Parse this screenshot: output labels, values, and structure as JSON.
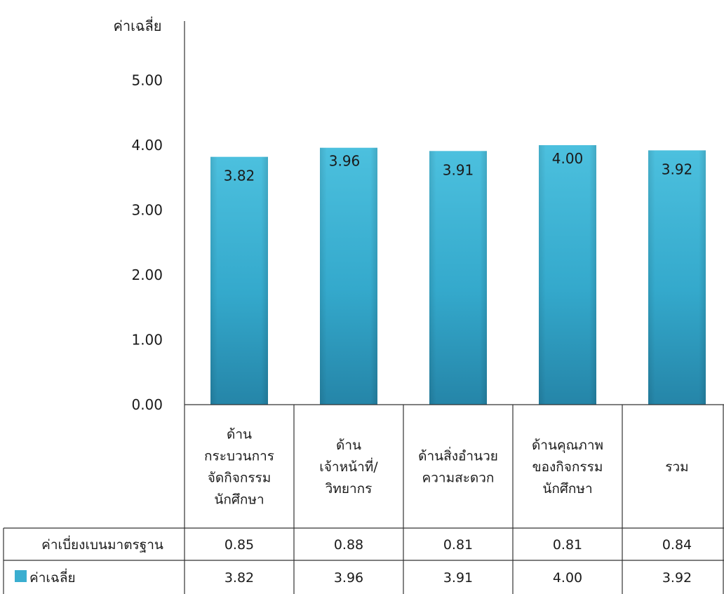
{
  "chart_data": {
    "type": "bar",
    "ylabel": "ค่าเฉลี่ย",
    "ylim": [
      0,
      5
    ],
    "yticks": [
      "0.00",
      "1.00",
      "2.00",
      "3.00",
      "4.00",
      "5.00"
    ],
    "categories": [
      [
        "ด้าน",
        "กระบวนการ",
        "จัดกิจกรรม",
        "นักศึกษา"
      ],
      [
        "ด้าน",
        "เจ้าหน้าที่/",
        "วิทยากร"
      ],
      [
        "ด้านสิ่งอำนวย",
        "ความสะดวก"
      ],
      [
        "ด้านคุณภาพ",
        "ของกิจกรรม",
        "นักศึกษา"
      ],
      [
        "รวม"
      ]
    ],
    "series": [
      {
        "name": "ค่าเฉลี่ย",
        "values": [
          3.82,
          3.96,
          3.91,
          4.0,
          3.92
        ],
        "labels": [
          "3.82",
          "3.96",
          "3.91",
          "4.00",
          "3.92"
        ]
      }
    ],
    "table_rows": [
      {
        "name": "ค่าเบี่ยงเบนมาตรฐาน",
        "values": [
          "0.85",
          "0.88",
          "0.81",
          "0.81",
          "0.84"
        ]
      },
      {
        "name": "ค่าเฉลี่ย",
        "values": [
          "3.82",
          "3.96",
          "3.91",
          "4.00",
          "3.92"
        ]
      }
    ],
    "colors": {
      "bar": "#3fb3d3",
      "bar_dark": "#2a8fb0",
      "legend_key": "#3aaed0"
    },
    "grid": false,
    "legend": "in-table"
  }
}
